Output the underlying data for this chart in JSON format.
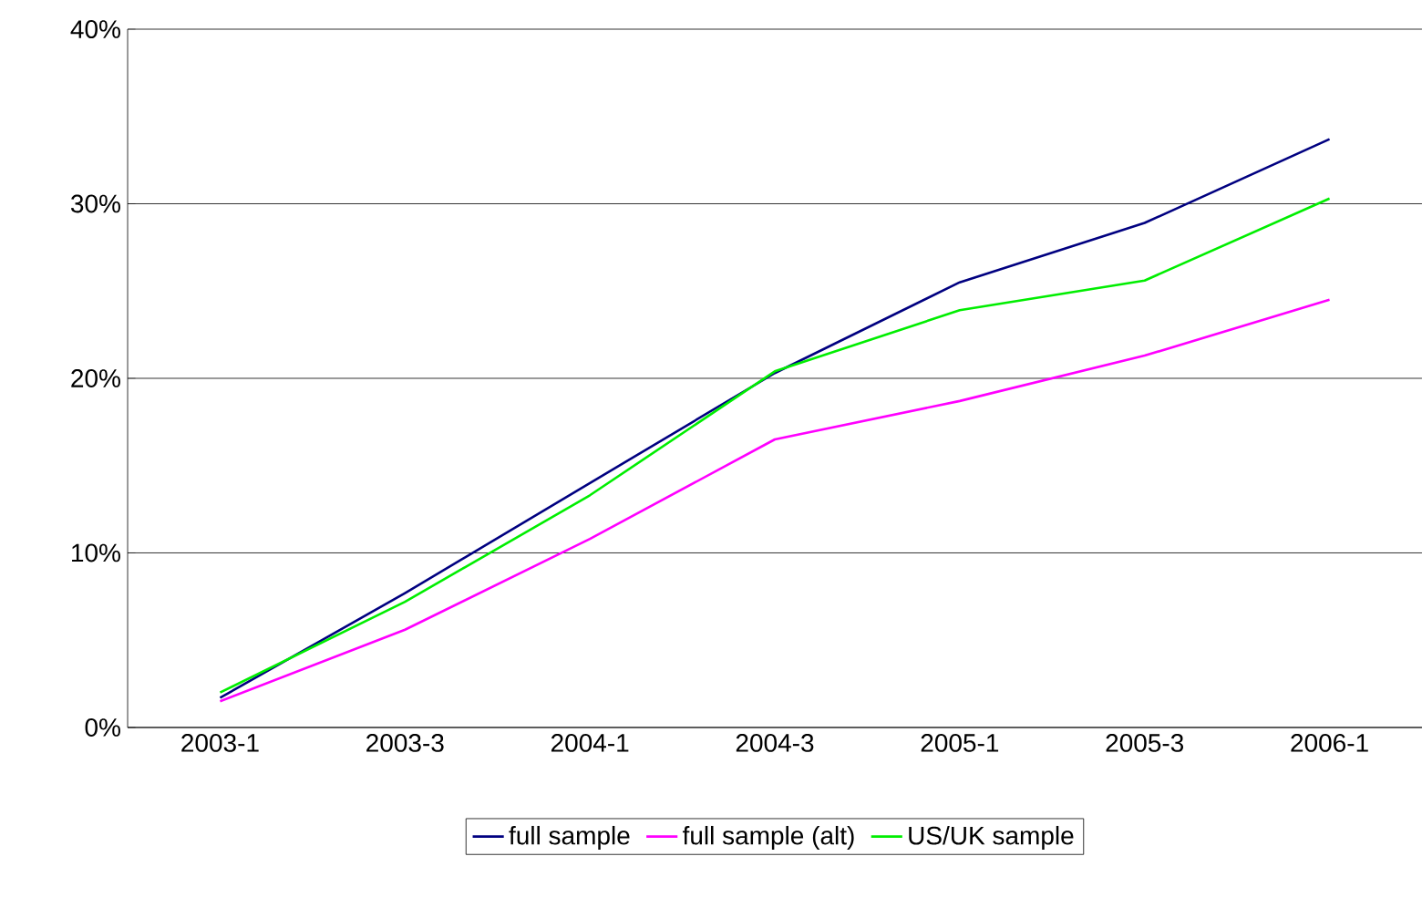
{
  "chart_data": {
    "type": "line",
    "categories": [
      "2003-1",
      "2003-3",
      "2004-1",
      "2004-3",
      "2005-1",
      "2005-3",
      "2006-1"
    ],
    "series": [
      {
        "name": "full sample",
        "color": "#000080",
        "values": [
          1.7,
          7.7,
          14.0,
          20.3,
          25.5,
          28.9,
          33.7
        ]
      },
      {
        "name": "full sample (alt)",
        "color": "#ff00ff",
        "values": [
          1.5,
          5.6,
          10.8,
          16.5,
          18.7,
          21.3,
          24.5
        ]
      },
      {
        "name": "US/UK sample",
        "color": "#00ee00",
        "values": [
          2.0,
          7.2,
          13.3,
          20.4,
          23.9,
          25.6,
          30.3
        ]
      }
    ],
    "ylim": [
      0,
      40
    ],
    "yticks": [
      {
        "value": 0,
        "label": "0%"
      },
      {
        "value": 10,
        "label": "10%"
      },
      {
        "value": 20,
        "label": "20%"
      },
      {
        "value": 30,
        "label": "30%"
      },
      {
        "value": 40,
        "label": "40%"
      }
    ],
    "grid": "y",
    "legend": "bottom"
  }
}
